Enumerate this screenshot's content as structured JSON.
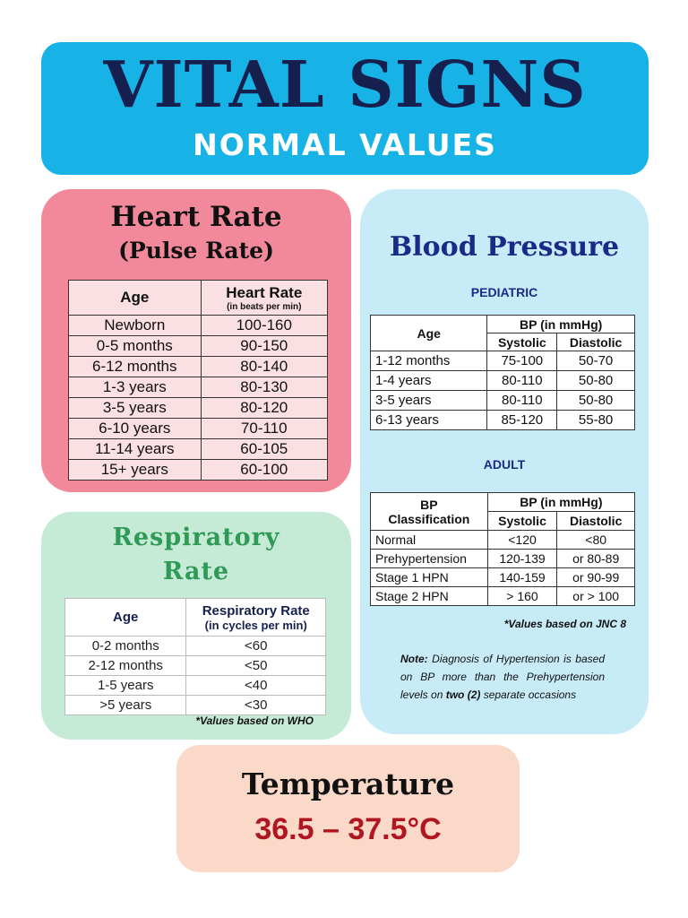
{
  "header": {
    "title": "VITAL SIGNS",
    "subtitle": "NORMAL VALUES"
  },
  "heart_rate": {
    "title": "Heart Rate",
    "subtitle": "(Pulse Rate)",
    "col_age": "Age",
    "col_rate": "Heart Rate",
    "col_rate_unit": "(in beats per min)",
    "rows": [
      {
        "age": "Newborn",
        "rate": "100-160"
      },
      {
        "age": "0-5 months",
        "rate": "90-150"
      },
      {
        "age": "6-12 months",
        "rate": "80-140"
      },
      {
        "age": "1-3 years",
        "rate": "80-130"
      },
      {
        "age": "3-5 years",
        "rate": "80-120"
      },
      {
        "age": "6-10 years",
        "rate": "70-110"
      },
      {
        "age": "11-14 years",
        "rate": "60-105"
      },
      {
        "age": "15+ years",
        "rate": "60-100"
      }
    ]
  },
  "respiratory": {
    "title_line1": "Respiratory",
    "title_line2": "Rate",
    "col_age": "Age",
    "col_rate": "Respiratory Rate",
    "col_rate_unit": "(in cycles per min)",
    "rows": [
      {
        "age": "0-2 months",
        "rate": "<60"
      },
      {
        "age": "2-12 months",
        "rate": "<50"
      },
      {
        "age": "1-5 years",
        "rate": "<40"
      },
      {
        "age": ">5 years",
        "rate": "<30"
      }
    ],
    "note": "*Values based on WHO"
  },
  "blood_pressure": {
    "title": "Blood Pressure",
    "pediatric": {
      "label": "PEDIATRIC",
      "col_age": "Age",
      "col_bp": "BP (in mmHg)",
      "col_sys": "Systolic",
      "col_dia": "Diastolic",
      "rows": [
        {
          "age": "1-12 months",
          "sys": "75-100",
          "dia": "50-70"
        },
        {
          "age": "1-4 years",
          "sys": "80-110",
          "dia": "50-80"
        },
        {
          "age": "3-5 years",
          "sys": "80-110",
          "dia": "50-80"
        },
        {
          "age": "6-13 years",
          "sys": "85-120",
          "dia": "55-80"
        }
      ]
    },
    "adult": {
      "label": "ADULT",
      "col_class_1": "BP",
      "col_class_2": "Classification",
      "col_bp": "BP (in mmHg)",
      "col_sys": "Systolic",
      "col_dia": "Diastolic",
      "rows": [
        {
          "cls": "Normal",
          "sys": "<120",
          "dia": "<80"
        },
        {
          "cls": "Prehypertension",
          "sys": "120-139",
          "dia": "or 80-89"
        },
        {
          "cls": "Stage 1 HPN",
          "sys": "140-159",
          "dia": "or 90-99"
        },
        {
          "cls": "Stage 2 HPN",
          "sys": "> 160",
          "dia": "or > 100"
        }
      ]
    },
    "jnc_note": "*Values based on JNC 8",
    "note_label": "Note:",
    "note_text": " Diagnosis of Hypertension is based on BP more than the Prehypertension levels on ",
    "note_emph": "two (2)",
    "note_end": " separate occasions"
  },
  "temperature": {
    "title": "Temperature",
    "value": "36.5 – 37.5°C"
  }
}
